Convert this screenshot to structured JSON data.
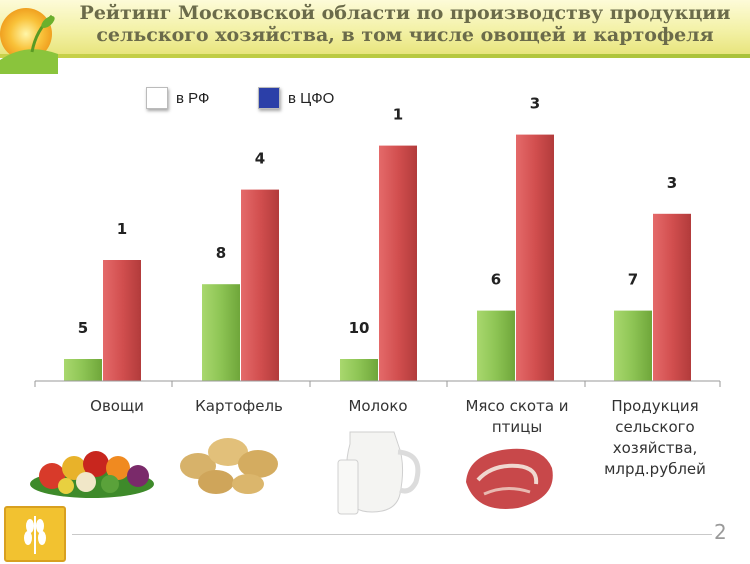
{
  "header": {
    "title_line1": "Рейтинг Московской области по производству продукции",
    "title_line2": "сельского хозяйства, в том числе овощей и картофеля"
  },
  "legend": [
    {
      "label": "в РФ",
      "color": "#ffffff"
    },
    {
      "label": "в ЦФО",
      "color": "#2b3fa8"
    }
  ],
  "categories_text": {
    "c0": [
      "Овощи"
    ],
    "c1": [
      "Картофель"
    ],
    "c2": [
      "Молоко"
    ],
    "c3": [
      "Мясо скота и",
      "птицы"
    ],
    "c4": [
      "Продукция",
      "сельского",
      "хозяйства,",
      "млрд.рублей"
    ]
  },
  "chart_data": {
    "type": "bar",
    "categories": [
      "Овощи",
      "Картофель",
      "Молоко",
      "Мясо скота и птицы",
      "Продукция сельского хозяйства, млрд.рублей"
    ],
    "series": [
      {
        "name": "в РФ",
        "values": [
          5,
          8,
          10,
          6,
          7
        ],
        "color": "#8dc454"
      },
      {
        "name": "в ЦФО",
        "values": [
          1,
          4,
          1,
          3,
          3
        ],
        "color": "#d24f4f"
      }
    ],
    "bar_heights_pct": {
      "в РФ": [
        10,
        44,
        10,
        32,
        32
      ],
      "в ЦФО": [
        55,
        87,
        107,
        112,
        76
      ]
    }
  },
  "page": {
    "number": "2"
  }
}
